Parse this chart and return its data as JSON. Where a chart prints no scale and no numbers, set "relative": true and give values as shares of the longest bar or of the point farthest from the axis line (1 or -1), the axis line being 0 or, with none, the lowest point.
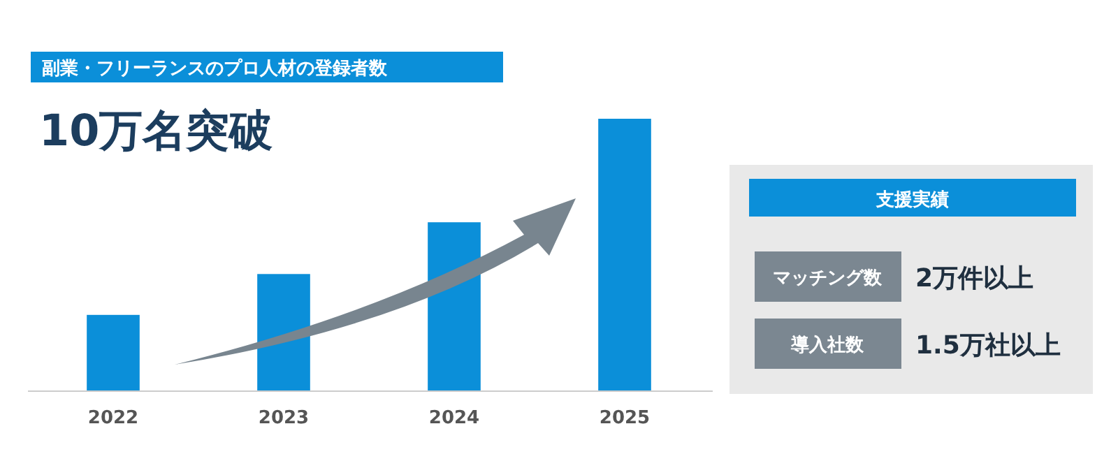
{
  "chart_data": [
    {
      "type": "bar",
      "title": "副業・フリーランスのプロ人材の登録者数",
      "subtitle": "10万名突破",
      "categories": [
        "2022",
        "2023",
        "2024",
        "2025"
      ],
      "values": [
        0.28,
        0.43,
        0.62,
        1
      ],
      "color": "#0b8fd9",
      "relative": true
    },
    {
      "type": "other",
      "title": "支援実績",
      "annotations": [
        "マッチング数",
        "2万件以上",
        "導入社数",
        "1.5万社以上"
      ]
    }
  ]
}
